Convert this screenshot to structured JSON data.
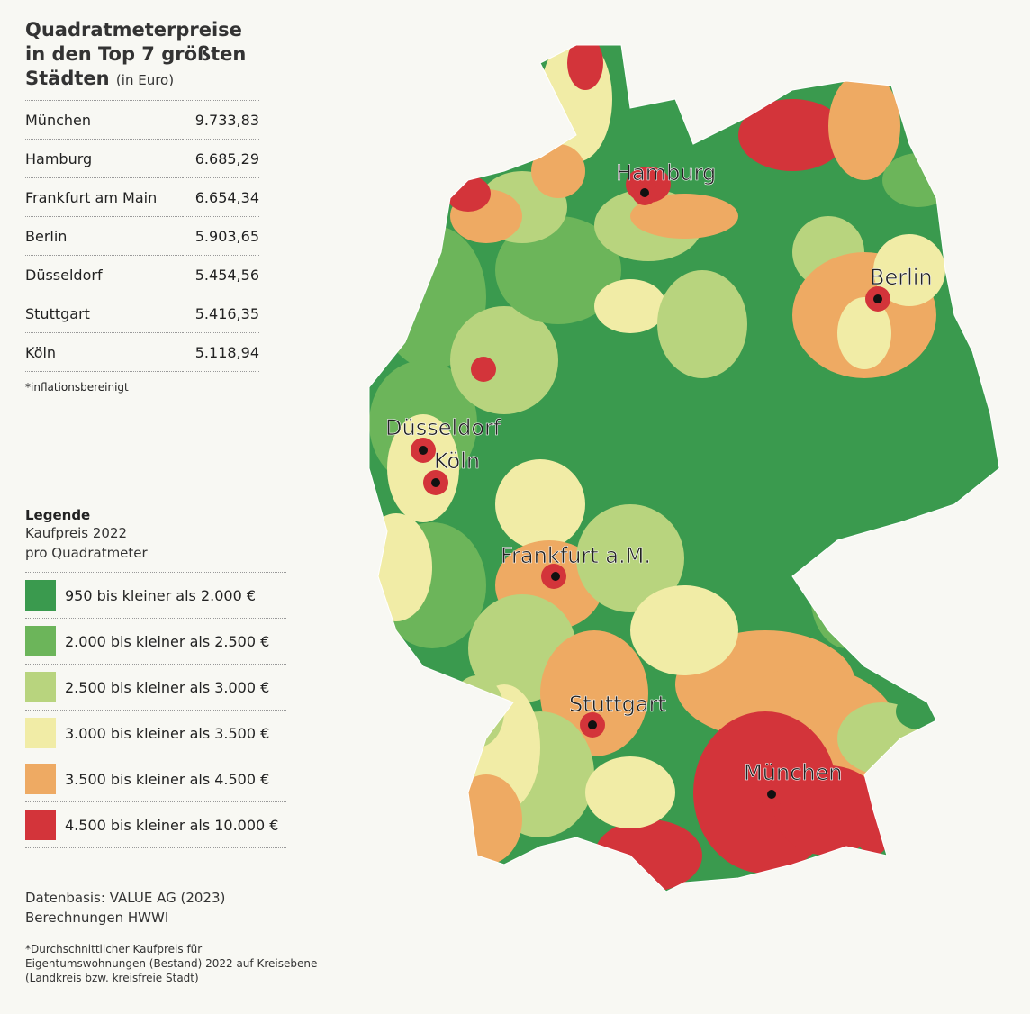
{
  "title": {
    "lines": [
      "Quadratmeterpreise",
      "in den Top 7 größten",
      "Städten"
    ],
    "unit": "(in Euro)"
  },
  "table": {
    "rows": [
      [
        "München",
        "9.733,83"
      ],
      [
        "Hamburg",
        "6.685,29"
      ],
      [
        "Frankfurt am Main",
        "6.654,34"
      ],
      [
        "Berlin",
        "5.903,65"
      ],
      [
        "Düsseldorf",
        "5.454,56"
      ],
      [
        "Stuttgart",
        "5.416,35"
      ],
      [
        "Köln",
        "5.118,94"
      ]
    ],
    "note": "*inflationsbereinigt"
  },
  "legend": {
    "title": "Legende",
    "subtitle": [
      "Kaufpreis 2022",
      "pro Quadratmeter"
    ],
    "items": [
      {
        "label": "950 bis kleiner als 2.000 €",
        "color": "#3a9a4e"
      },
      {
        "label": "2.000 bis kleiner als 2.500 €",
        "color": "#6cb55a"
      },
      {
        "label": "2.500 bis kleiner als 3.000 €",
        "color": "#b8d47e"
      },
      {
        "label": "3.000 bis kleiner als 3.500 €",
        "color": "#f1eca6"
      },
      {
        "label": "3.500 bis kleiner als 4.500 €",
        "color": "#eeaa63"
      },
      {
        "label": "4.500 bis kleiner als 10.000 €",
        "color": "#d3343a"
      }
    ]
  },
  "source": [
    "Datenbasis: VALUE AG (2023)",
    "Berechnungen HWWI"
  ],
  "footnote": [
    "*Durchschnittlicher Kaufpreis für",
    "Eigentumswohnungen (Bestand) 2022 auf Kreisebene",
    "(Landkreis bzw. kreisfreie Stadt)"
  ],
  "map": {
    "cities": [
      {
        "name": "Hamburg"
      },
      {
        "name": "Berlin"
      },
      {
        "name": "Düsseldorf"
      },
      {
        "name": "Köln"
      },
      {
        "name": "Frankfurt a.M."
      },
      {
        "name": "Stuttgart"
      },
      {
        "name": "München"
      }
    ]
  }
}
